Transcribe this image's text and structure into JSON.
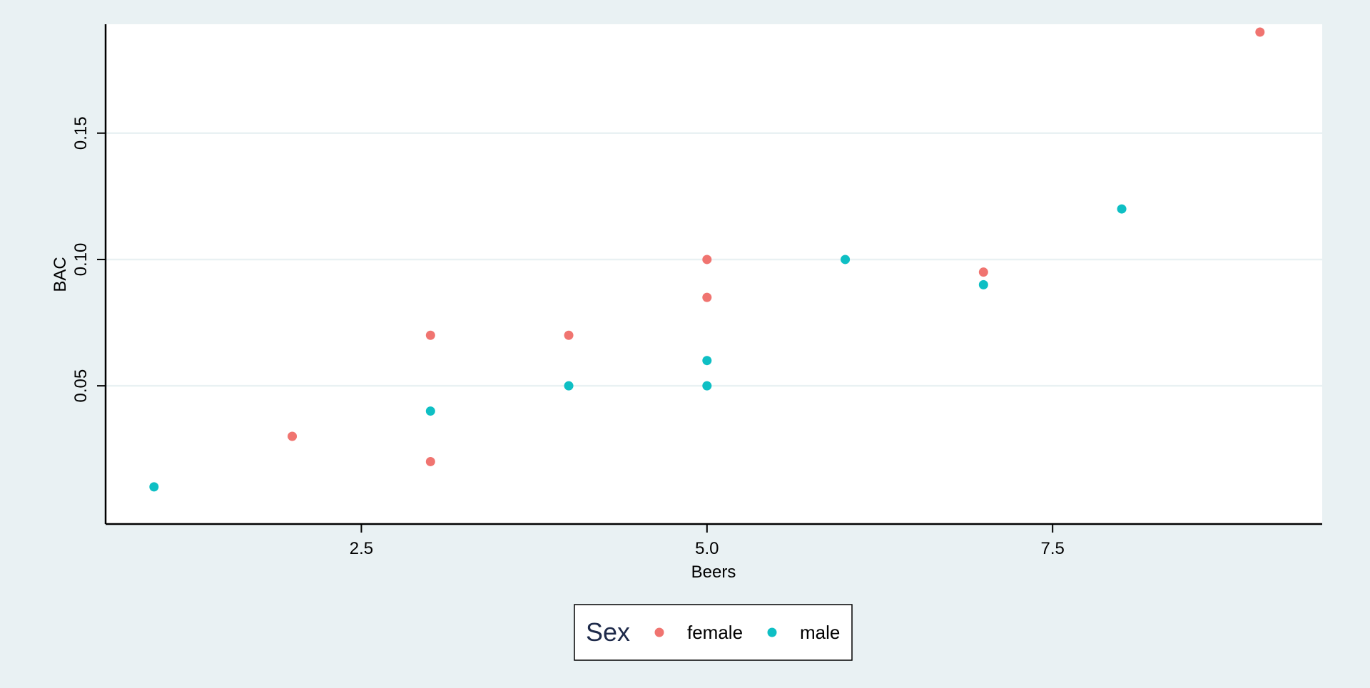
{
  "chart_data": {
    "type": "scatter",
    "title": "",
    "xlabel": "Beers",
    "ylabel": "BAC",
    "xlim": [
      0.65,
      9.45
    ],
    "ylim": [
      -0.0047,
      0.1931
    ],
    "xticks": [
      2.5,
      5.0,
      7.5
    ],
    "xtick_labels": [
      "2.5",
      "5.0",
      "7.5"
    ],
    "yticks": [
      0.05,
      0.1,
      0.15
    ],
    "ytick_labels": [
      "0.05",
      "0.10",
      "0.15"
    ],
    "grid": "horizontal",
    "legend": {
      "title": "Sex",
      "placement": "bottom",
      "entries": [
        "female",
        "male"
      ]
    },
    "colors": {
      "background": "#e9f1f3",
      "panel": "#ffffff",
      "grid": "#e9f1f3",
      "axis": "#000000",
      "legend_title": "#1e2a4a",
      "female": "#f07470",
      "male": "#0ebfc4"
    },
    "series": [
      {
        "name": "female",
        "x": [
          2,
          3,
          3,
          4,
          5,
          5,
          7,
          9
        ],
        "y": [
          0.03,
          0.02,
          0.07,
          0.07,
          0.085,
          0.1,
          0.095,
          0.19
        ]
      },
      {
        "name": "male",
        "x": [
          1,
          3,
          4,
          5,
          5,
          6,
          7,
          8
        ],
        "y": [
          0.01,
          0.04,
          0.05,
          0.05,
          0.06,
          0.1,
          0.09,
          0.12
        ]
      }
    ]
  }
}
